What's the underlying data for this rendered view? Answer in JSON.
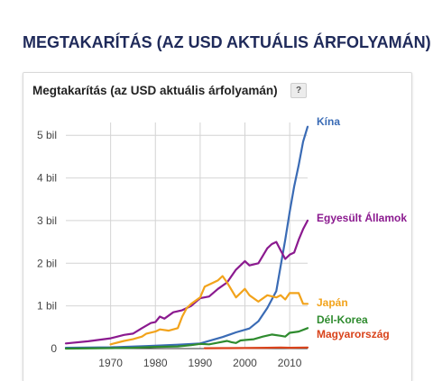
{
  "page": {
    "title": "MEGTAKARÍTÁS (AZ USD AKTUÁLIS ÁRFOLYAMÁN)"
  },
  "card": {
    "title": "Megtakarítás (az USD aktuális árfolyamán)",
    "help": "?"
  },
  "chart_data": {
    "type": "line",
    "title": "Megtakarítás (az USD aktuális árfolyamán)",
    "xlabel": "",
    "ylabel": "",
    "xlim": [
      1960,
      2014
    ],
    "ylim": [
      0,
      5.3
    ],
    "grid": true,
    "legend": "inline-right",
    "xticks": [
      {
        "value": 1970,
        "label": "1970"
      },
      {
        "value": 1980,
        "label": "1980"
      },
      {
        "value": 1990,
        "label": "1990"
      },
      {
        "value": 2000,
        "label": "2000"
      },
      {
        "value": 2010,
        "label": "2010"
      }
    ],
    "yticks": [
      {
        "value": 0,
        "label": "0"
      },
      {
        "value": 1,
        "label": "1 bil"
      },
      {
        "value": 2,
        "label": "2 bil"
      },
      {
        "value": 3,
        "label": "3 bil"
      },
      {
        "value": 4,
        "label": "4 bil"
      },
      {
        "value": 5,
        "label": "5 bil"
      }
    ],
    "series": [
      {
        "name": "Kína",
        "color": "#3a6bb5",
        "x": [
          1960,
          1970,
          1978,
          1985,
          1990,
          1995,
          1998,
          2001,
          2003,
          2005,
          2007,
          2009,
          2010,
          2011,
          2012,
          2013,
          2014
        ],
        "y": [
          0.02,
          0.03,
          0.06,
          0.09,
          0.12,
          0.27,
          0.38,
          0.47,
          0.64,
          0.95,
          1.35,
          2.55,
          3.2,
          3.8,
          4.3,
          4.85,
          5.2
        ]
      },
      {
        "name": "Egyesült Államok",
        "color": "#8b1a8f",
        "x": [
          1960,
          1965,
          1970,
          1973,
          1975,
          1977,
          1979,
          1980,
          1981,
          1982,
          1984,
          1986,
          1988,
          1990,
          1992,
          1994,
          1996,
          1998,
          2000,
          2001,
          2003,
          2005,
          2006,
          2007,
          2008,
          2009,
          2010,
          2011,
          2012,
          2013,
          2014
        ],
        "y": [
          0.12,
          0.17,
          0.24,
          0.32,
          0.35,
          0.48,
          0.6,
          0.62,
          0.75,
          0.7,
          0.85,
          0.9,
          1.0,
          1.18,
          1.22,
          1.4,
          1.55,
          1.85,
          2.05,
          1.95,
          2.0,
          2.35,
          2.45,
          2.5,
          2.3,
          2.1,
          2.2,
          2.25,
          2.55,
          2.8,
          3.0
        ]
      },
      {
        "name": "Japán",
        "color": "#f2a31b",
        "x": [
          1970,
          1973,
          1975,
          1977,
          1978,
          1980,
          1981,
          1983,
          1985,
          1986,
          1987,
          1988,
          1990,
          1991,
          1993,
          1994,
          1995,
          1996,
          1998,
          2000,
          2001,
          2003,
          2005,
          2007,
          2008,
          2009,
          2010,
          2011,
          2012,
          2013,
          2014
        ],
        "y": [
          0.1,
          0.18,
          0.22,
          0.28,
          0.35,
          0.4,
          0.45,
          0.42,
          0.48,
          0.75,
          0.95,
          1.05,
          1.2,
          1.45,
          1.55,
          1.6,
          1.7,
          1.55,
          1.2,
          1.4,
          1.25,
          1.1,
          1.25,
          1.2,
          1.25,
          1.15,
          1.3,
          1.3,
          1.3,
          1.05,
          1.05
        ]
      },
      {
        "name": "Dél-Korea",
        "color": "#2e8b2e",
        "x": [
          1960,
          1970,
          1975,
          1980,
          1985,
          1988,
          1990,
          1992,
          1994,
          1996,
          1997,
          1998,
          1999,
          2000,
          2002,
          2004,
          2006,
          2008,
          2009,
          2010,
          2012,
          2014
        ],
        "y": [
          0.0,
          0.01,
          0.02,
          0.04,
          0.05,
          0.08,
          0.11,
          0.1,
          0.14,
          0.18,
          0.15,
          0.13,
          0.19,
          0.2,
          0.22,
          0.28,
          0.33,
          0.3,
          0.28,
          0.37,
          0.4,
          0.48
        ]
      },
      {
        "name": "Magyarország",
        "color": "#d9431b",
        "x": [
          1991,
          1995,
          2000,
          2005,
          2008,
          2010,
          2014
        ],
        "y": [
          0.008,
          0.01,
          0.012,
          0.02,
          0.025,
          0.02,
          0.025
        ]
      }
    ]
  }
}
